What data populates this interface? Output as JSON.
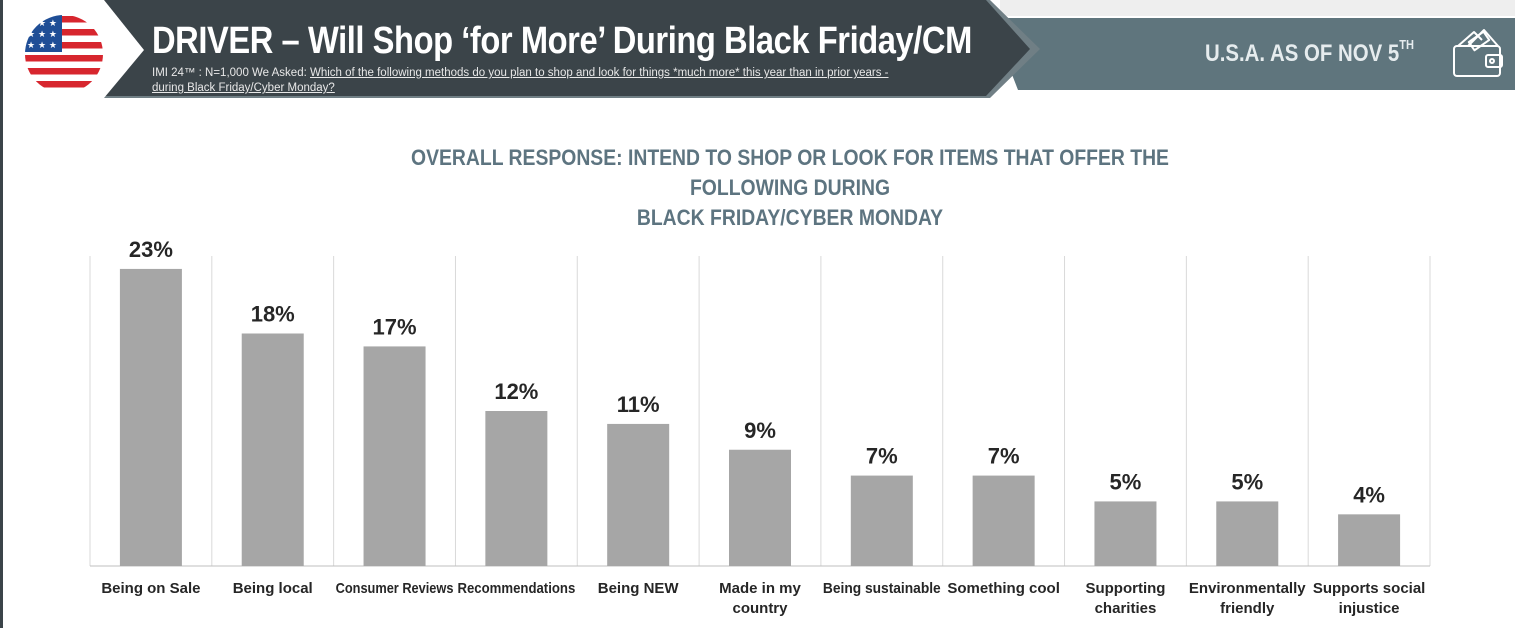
{
  "header": {
    "title": "DRIVER – Will Shop ‘for More’ During Black Friday/CM",
    "subtitle_prefix": "IMI 24™ :  N=1,000 We Asked: ",
    "subtitle_question": "Which  of the following methods do you plan to shop and look for things *much more* this year than in prior years - during Black Friday/Cyber Monday?",
    "region_date": "U.S.A. AS OF NOV 5",
    "region_date_suffix": "TH"
  },
  "colors": {
    "banner_dark": "#3b4449",
    "banner_slate": "#5f757d",
    "bar": "#a6a6a6",
    "title_accent": "#5d7480",
    "text_dark": "#262626"
  },
  "icons": [
    "us-flag-icon",
    "wallet-icon"
  ],
  "chart_data": {
    "type": "bar",
    "title": "OVERALL RESPONSE: INTEND TO SHOP OR LOOK FOR ITEMS THAT OFFER THE FOLLOWING DURING BLACK FRIDAY/CYBER MONDAY",
    "title_lines": [
      "OVERALL RESPONSE: INTEND TO SHOP OR LOOK FOR ITEMS THAT OFFER THE FOLLOWING DURING",
      "BLACK FRIDAY/CYBER MONDAY"
    ],
    "categories": [
      "Being on Sale",
      "Being local",
      "Consumer Reviews",
      "Recommendations",
      "Being NEW",
      "Made in my country",
      "Being sustainable",
      "Something cool",
      "Supporting charities",
      "Environmentally friendly",
      "Supports social injustice"
    ],
    "category_lines": [
      [
        "Being on Sale"
      ],
      [
        "Being local"
      ],
      [
        "Consumer Reviews"
      ],
      [
        "Recommendations"
      ],
      [
        "Being NEW"
      ],
      [
        "Made in my",
        "country"
      ],
      [
        "Being sustainable"
      ],
      [
        "Something cool"
      ],
      [
        "Supporting",
        "charities"
      ],
      [
        "Environmentally",
        "friendly"
      ],
      [
        "Supports social",
        "injustice"
      ]
    ],
    "values": [
      23,
      18,
      17,
      12,
      11,
      9,
      7,
      7,
      5,
      5,
      4
    ],
    "data_labels": [
      "23%",
      "18%",
      "17%",
      "12%",
      "11%",
      "9%",
      "7%",
      "7%",
      "5%",
      "5%",
      "4%"
    ],
    "unit": "%",
    "ylim": [
      0,
      24
    ],
    "grid": "vertical separators",
    "legend": "none",
    "xlabel": "",
    "ylabel": ""
  }
}
